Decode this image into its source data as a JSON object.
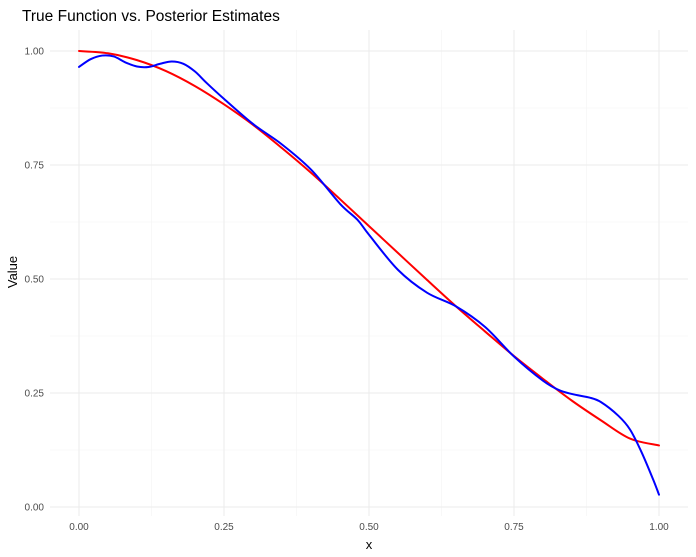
{
  "chart_data": {
    "type": "line",
    "title": "True Function vs. Posterior Estimates",
    "xlabel": "x",
    "ylabel": "Value",
    "xlim": [
      0,
      1
    ],
    "ylim": [
      0,
      1
    ],
    "x_ticks": [
      "0.00",
      "0.25",
      "0.50",
      "0.75",
      "1.00"
    ],
    "y_ticks": [
      "0.00",
      "0.25",
      "0.50",
      "0.75",
      "1.00"
    ],
    "grid": true,
    "legend": "none",
    "series": [
      {
        "color": "#ff0000",
        "x": [
          0.0,
          0.05,
          0.1,
          0.15,
          0.2,
          0.25,
          0.3,
          0.35,
          0.4,
          0.45,
          0.5,
          0.55,
          0.6,
          0.65,
          0.7,
          0.75,
          0.8,
          0.85,
          0.9,
          0.95,
          1.0
        ],
        "y": [
          1.0,
          0.995,
          0.98,
          0.956,
          0.923,
          0.883,
          0.838,
          0.787,
          0.733,
          0.675,
          0.616,
          0.557,
          0.498,
          0.44,
          0.385,
          0.331,
          0.281,
          0.233,
          0.19,
          0.15,
          0.135
        ]
      },
      {
        "color": "#0000ff",
        "x": [
          0.0,
          0.02,
          0.04,
          0.06,
          0.08,
          0.1,
          0.12,
          0.14,
          0.16,
          0.18,
          0.2,
          0.22,
          0.25,
          0.3,
          0.35,
          0.4,
          0.45,
          0.48,
          0.5,
          0.55,
          0.6,
          0.65,
          0.7,
          0.75,
          0.8,
          0.83,
          0.86,
          0.88,
          0.9,
          0.93,
          0.95,
          0.97,
          0.99,
          1.0
        ],
        "y": [
          0.965,
          0.982,
          0.99,
          0.988,
          0.975,
          0.966,
          0.965,
          0.972,
          0.977,
          0.972,
          0.955,
          0.93,
          0.895,
          0.84,
          0.795,
          0.74,
          0.665,
          0.63,
          0.597,
          0.52,
          0.47,
          0.44,
          0.395,
          0.33,
          0.277,
          0.255,
          0.245,
          0.24,
          0.23,
          0.2,
          0.17,
          0.12,
          0.06,
          0.027
        ]
      }
    ]
  }
}
